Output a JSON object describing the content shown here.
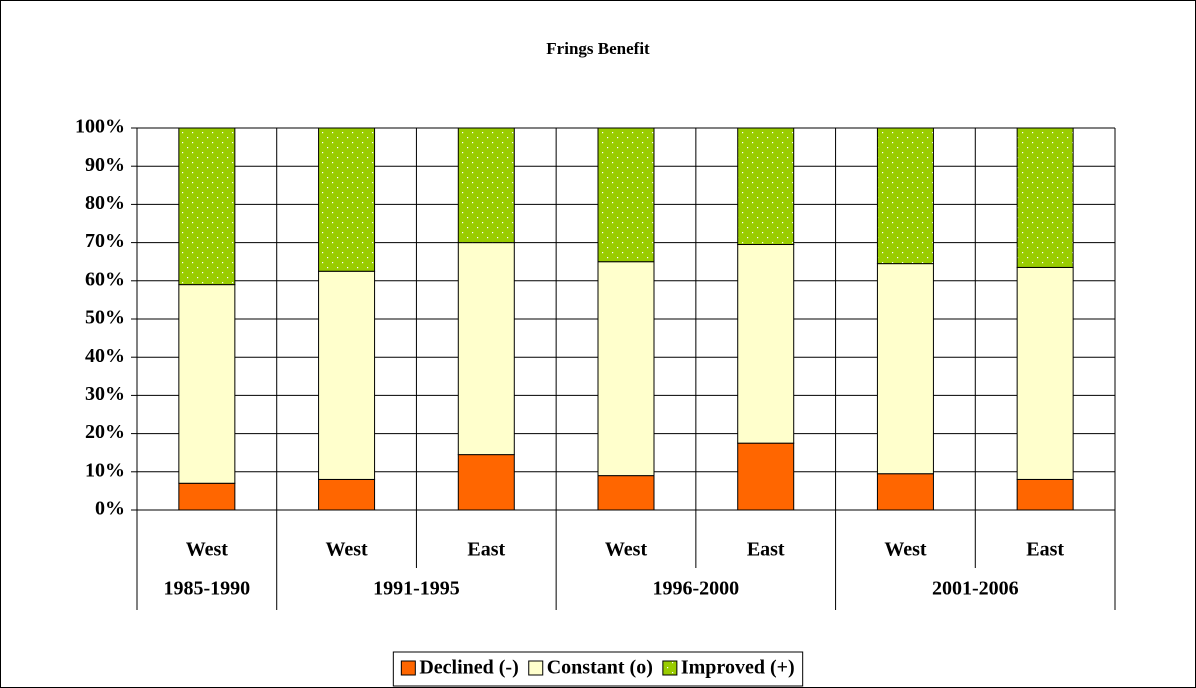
{
  "chart_data": {
    "type": "stacked_bar",
    "title": "Frings Benefit",
    "groups": [
      {
        "label": "1985-1990",
        "categories": [
          "West"
        ]
      },
      {
        "label": "1991-1995",
        "categories": [
          "West",
          "East"
        ]
      },
      {
        "label": "1996-2000",
        "categories": [
          "West",
          "East"
        ]
      },
      {
        "label": "2001-2006",
        "categories": [
          "West",
          "East"
        ]
      }
    ],
    "series": [
      {
        "name": "Declined (-)",
        "color": "#ff6600",
        "values": [
          7,
          8,
          14.5,
          9,
          17.5,
          9.5,
          8
        ]
      },
      {
        "name": "Constant (o)",
        "color": "#ffffcc",
        "values": [
          52,
          54.5,
          55.5,
          56,
          52,
          55,
          55.5
        ]
      },
      {
        "name": "Improved (+)",
        "color": "#99cc00",
        "values": [
          41,
          37.5,
          30,
          35,
          30.5,
          35.5,
          36.5
        ]
      }
    ],
    "ylim": [
      0,
      100
    ],
    "yticks": [
      {
        "value": 0,
        "label": "0%"
      },
      {
        "value": 10,
        "label": "10%"
      },
      {
        "value": 20,
        "label": "20%"
      },
      {
        "value": 30,
        "label": "30%"
      },
      {
        "value": 40,
        "label": "40%"
      },
      {
        "value": 50,
        "label": "50%"
      },
      {
        "value": 60,
        "label": "60%"
      },
      {
        "value": 70,
        "label": "70%"
      },
      {
        "value": 80,
        "label": "80%"
      },
      {
        "value": 90,
        "label": "90%"
      },
      {
        "value": 100,
        "label": "100%"
      }
    ],
    "grid": true,
    "legend": "bottom"
  }
}
